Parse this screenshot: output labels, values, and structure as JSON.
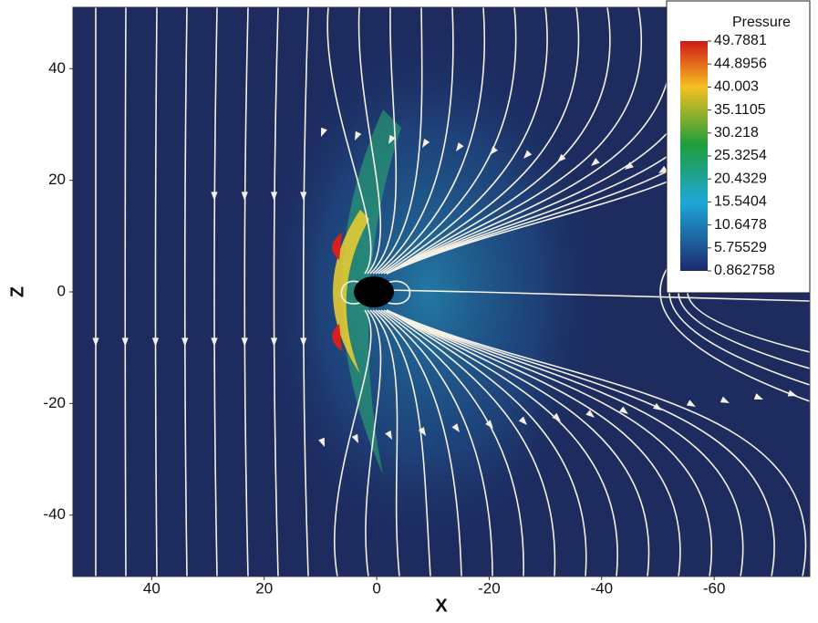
{
  "chart_data": {
    "type": "field",
    "x_label": "X",
    "y_label": "Z",
    "xlim": [
      54,
      -77
    ],
    "ylim": [
      -51,
      51
    ],
    "xticks": [
      40,
      20,
      0,
      -20,
      -40,
      -60
    ],
    "yticks": [
      40,
      20,
      0,
      -20,
      -40
    ],
    "colorbar": {
      "title": "Pressure",
      "clim": [
        0.862758,
        49.7881
      ],
      "ticks": [
        49.7881,
        44.8956,
        40.003,
        35.1105,
        30.218,
        25.3254,
        20.4329,
        15.5404,
        10.6478,
        5.75529,
        0.862758
      ]
    }
  }
}
